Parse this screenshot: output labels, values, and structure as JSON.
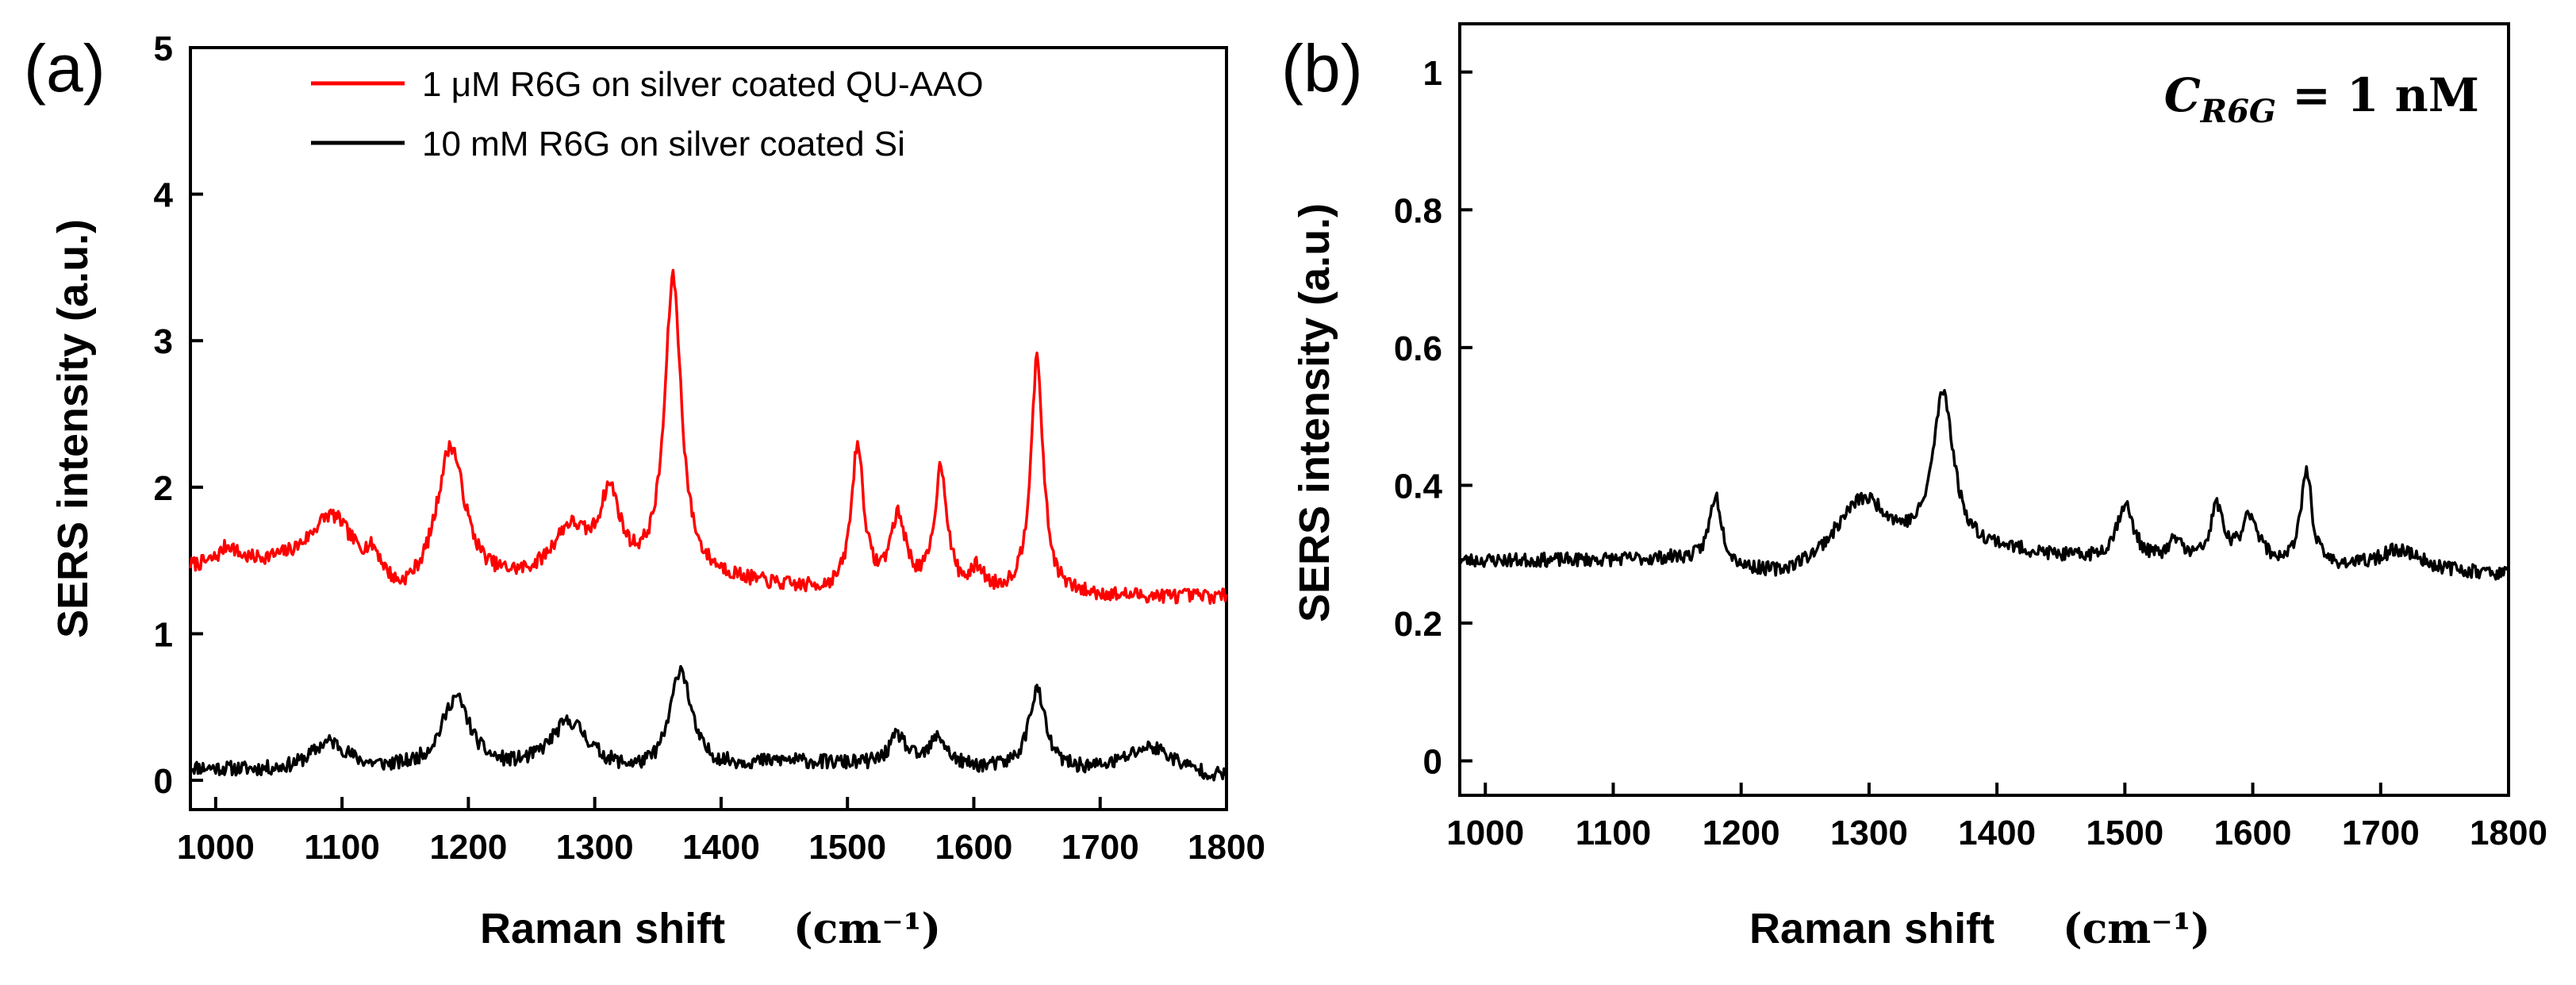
{
  "chart_data": [
    {
      "type": "line",
      "panel_label": "(a)",
      "xlabel": "Raman shift",
      "xunit": "(cm⁻¹)",
      "ylabel": "SERS intensity (a.u.)",
      "xlim": [
        980,
        1800
      ],
      "ylim": [
        -0.2,
        5
      ],
      "xticks": [
        "1000",
        "1100",
        "1200",
        "1300",
        "1400",
        "1500",
        "1600",
        "1700",
        "1800"
      ],
      "yticks": [
        "0",
        "1",
        "2",
        "3",
        "4",
        "5"
      ],
      "legend_position": "top-right",
      "series": [
        {
          "name": "1 μM R6G on silver coated QU-AAO",
          "color": "#ff0000",
          "base_points": [
            [
              980,
              1.45
            ],
            [
              1100,
              1.5
            ],
            [
              1145,
              1.2
            ],
            [
              1230,
              1.3
            ],
            [
              1400,
              1.35
            ],
            [
              1500,
              1.25
            ],
            [
              1800,
              1.25
            ]
          ],
          "peaks": [
            [
              1010,
              0.12,
              8
            ],
            [
              1090,
              0.28,
              18
            ],
            [
              1125,
              0.15,
              8
            ],
            [
              1186,
              1.0,
              14
            ],
            [
              1280,
              0.35,
              18
            ],
            [
              1312,
              0.55,
              10
            ],
            [
              1362,
              2.05,
              8
            ],
            [
              1508,
              1.0,
              6
            ],
            [
              1540,
              0.5,
              8
            ],
            [
              1574,
              0.85,
              6
            ],
            [
              1603,
              0.15,
              6
            ],
            [
              1650,
              1.6,
              6
            ]
          ],
          "noise": 0.05,
          "seed": 7
        },
        {
          "name": "10 mM R6G on silver coated Si",
          "color": "#000000",
          "base_points": [
            [
              980,
              0.08
            ],
            [
              1050,
              0.05
            ],
            [
              1150,
              0.05
            ],
            [
              1340,
              0.02
            ],
            [
              1450,
              0.12
            ],
            [
              1800,
              0.0
            ]
          ],
          "peaks": [
            [
              1090,
              0.2,
              18
            ],
            [
              1190,
              0.5,
              14
            ],
            [
              1280,
              0.35,
              20
            ],
            [
              1368,
              0.7,
              10
            ],
            [
              1540,
              0.2,
              8
            ],
            [
              1572,
              0.2,
              8
            ],
            [
              1650,
              0.55,
              8
            ],
            [
              1740,
              0.2,
              25
            ]
          ],
          "noise": 0.05,
          "seed": 11
        }
      ]
    },
    {
      "type": "line",
      "panel_label": "(b)",
      "xlabel": "Raman shift",
      "xunit": "(cm⁻¹)",
      "ylabel": "SERS intensity (a.u.)",
      "xlim": [
        980,
        1800
      ],
      "ylim": [
        -0.05,
        1.07
      ],
      "xticks": [
        "1000",
        "1100",
        "1200",
        "1300",
        "1400",
        "1500",
        "1600",
        "1700",
        "1800"
      ],
      "yticks": [
        "0",
        "0.2",
        "0.4",
        "0.6",
        "0.8",
        "1"
      ],
      "annotation": "C_R6G = 1 nM",
      "series": [
        {
          "name": "1 nM R6G",
          "color": "#000000",
          "base_points": [
            [
              980,
              0.29
            ],
            [
              1150,
              0.29
            ],
            [
              1230,
              0.26
            ],
            [
              1400,
              0.3
            ],
            [
              1460,
              0.29
            ],
            [
              1800,
              0.27
            ]
          ],
          "peaks": [
            [
              1180,
              0.1,
              6
            ],
            [
              1295,
              0.1,
              28
            ],
            [
              1358,
              0.23,
              10
            ],
            [
              1500,
              0.08,
              8
            ],
            [
              1540,
              0.03,
              6
            ],
            [
              1572,
              0.08,
              6
            ],
            [
              1598,
              0.07,
              8
            ],
            [
              1642,
              0.14,
              5
            ],
            [
              1715,
              0.03,
              20
            ]
          ],
          "noise": 0.01,
          "seed": 23
        }
      ]
    }
  ],
  "annotation_parts": {
    "c": "C",
    "sub": "R6G",
    "rest": " = 1 nM"
  }
}
